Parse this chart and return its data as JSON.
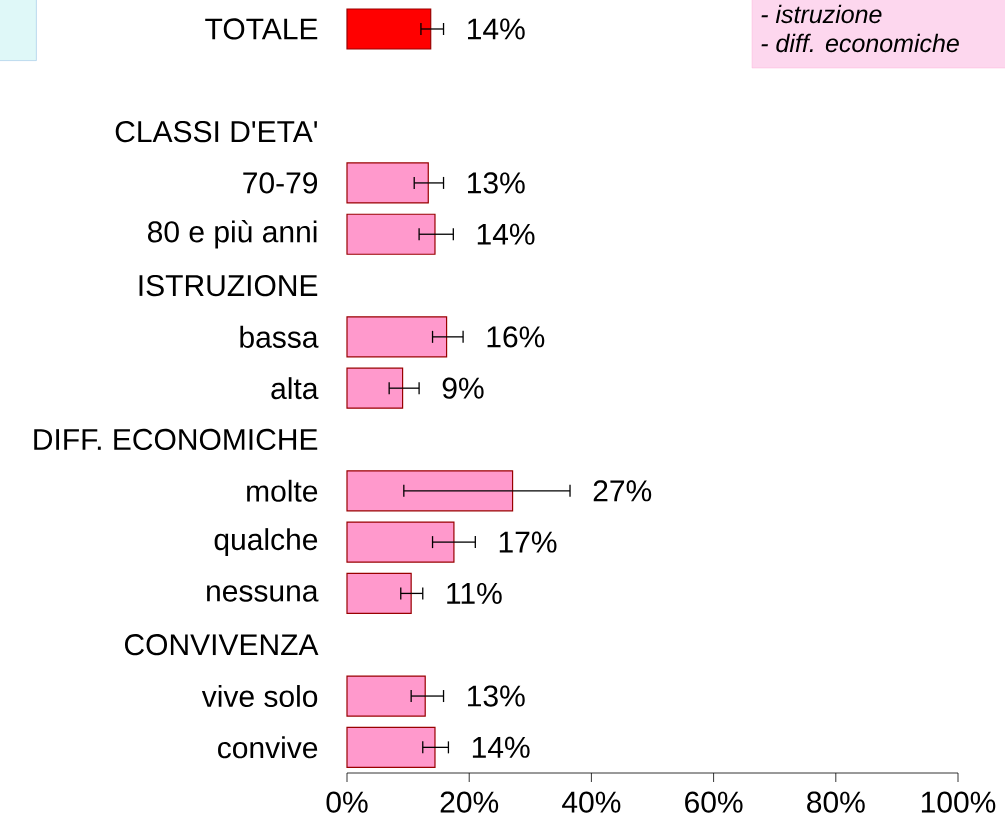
{
  "chart_data": {
    "type": "bar",
    "orientation": "horizontal",
    "categories": [
      "TOTALE",
      null,
      "CLASSI D'ETA'",
      "70-79",
      "80 e più anni",
      "ISTRUZIONE",
      "bassa",
      "alta",
      "DIFF. ECONOMICHE",
      "molte",
      "qualche",
      "nessuna",
      "CONVIVENZA",
      "vive solo",
      "convive"
    ],
    "values": [
      13.7,
      null,
      null,
      13.3,
      14.4,
      null,
      16.3,
      9.1,
      null,
      27.1,
      17.5,
      10.5,
      null,
      12.8,
      14.4
    ],
    "errors": [
      [
        12.1,
        15.8
      ],
      null,
      null,
      [
        11.0,
        15.8
      ],
      [
        11.8,
        17.4
      ],
      null,
      [
        14.0,
        19.0
      ],
      [
        6.9,
        11.8
      ],
      null,
      [
        9.3,
        36.5
      ],
      [
        14.0,
        21.0
      ],
      [
        8.8,
        12.4
      ],
      null,
      [
        10.5,
        15.8
      ],
      [
        12.4,
        16.6
      ]
    ],
    "value_labels": [
      "14%",
      null,
      null,
      "13%",
      "14%",
      null,
      "16%",
      "9%",
      null,
      "27%",
      "17%",
      "11%",
      null,
      "13%",
      "14%"
    ],
    "colors": [
      "#ff0000",
      null,
      null,
      "#ff99cc",
      "#ff99cc",
      null,
      "#ff99cc",
      "#ff99cc",
      null,
      "#ff99cc",
      "#ff99cc",
      "#ff99cc",
      null,
      "#ff99cc",
      "#ff99cc"
    ],
    "xlim": [
      0,
      100
    ],
    "xticks": [
      {
        "value": 0,
        "label": "0%"
      },
      {
        "value": 20,
        "label": "20%"
      },
      {
        "value": 40,
        "label": "40%"
      },
      {
        "value": 60,
        "label": "60%"
      },
      {
        "value": 80,
        "label": "80%"
      },
      {
        "value": 100,
        "label": "100%"
      }
    ],
    "annotations": [
      "- istruzione",
      "- diff. economiche"
    ]
  }
}
